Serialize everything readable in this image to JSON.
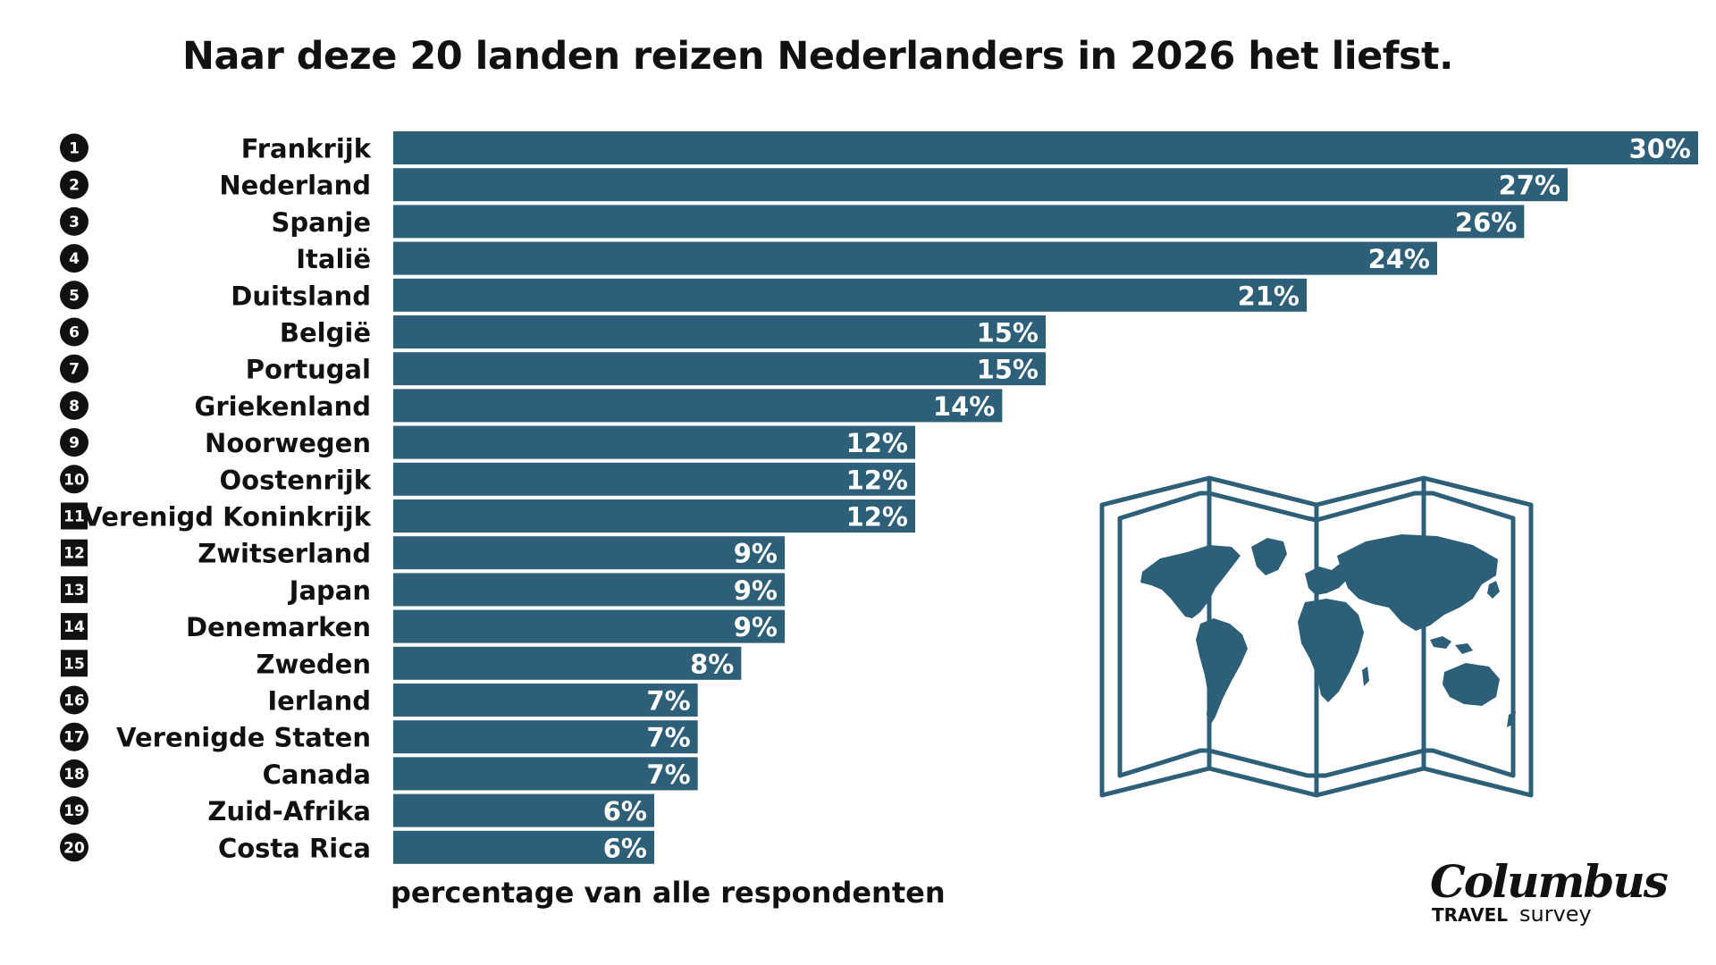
{
  "colors": {
    "bar": "#2e5f78",
    "rank_badge": "#111111",
    "map": "#2e5f78"
  },
  "chart_data": {
    "type": "bar",
    "orientation": "horizontal",
    "title": "Naar deze 20 landen reizen Nederlanders in 2026 het liefst.",
    "xlabel": "percentage van alle respondenten",
    "ylabel": "",
    "xlim": [
      0,
      30
    ],
    "grid": false,
    "value_suffix": "%",
    "ranks": [
      "1",
      "2",
      "3",
      "4",
      "5",
      "6",
      "7",
      "8",
      "9",
      "10",
      "11",
      "12",
      "13",
      "14",
      "15",
      "16",
      "17",
      "18",
      "19",
      "20"
    ],
    "categories": [
      "Frankrijk",
      "Nederland",
      "Spanje",
      "Italië",
      "Duitsland",
      "België",
      "Portugal",
      "Griekenland",
      "Noorwegen",
      "Oostenrijk",
      "Verenigd Koninkrijk",
      "Zwitserland",
      "Japan",
      "Denemarken",
      "Zweden",
      "Ierland",
      "Verenigde Staten",
      "Canada",
      "Zuid-Afrika",
      "Costa Rica"
    ],
    "values": [
      30,
      27,
      26,
      24,
      21,
      15,
      15,
      14,
      12,
      12,
      12,
      9,
      9,
      9,
      8,
      7,
      7,
      7,
      6,
      6
    ]
  },
  "logo": {
    "name": "Columbus",
    "line1": "TRAVEL",
    "line2": "survey"
  },
  "icons": {
    "illustration": "folded-world-map-icon"
  }
}
